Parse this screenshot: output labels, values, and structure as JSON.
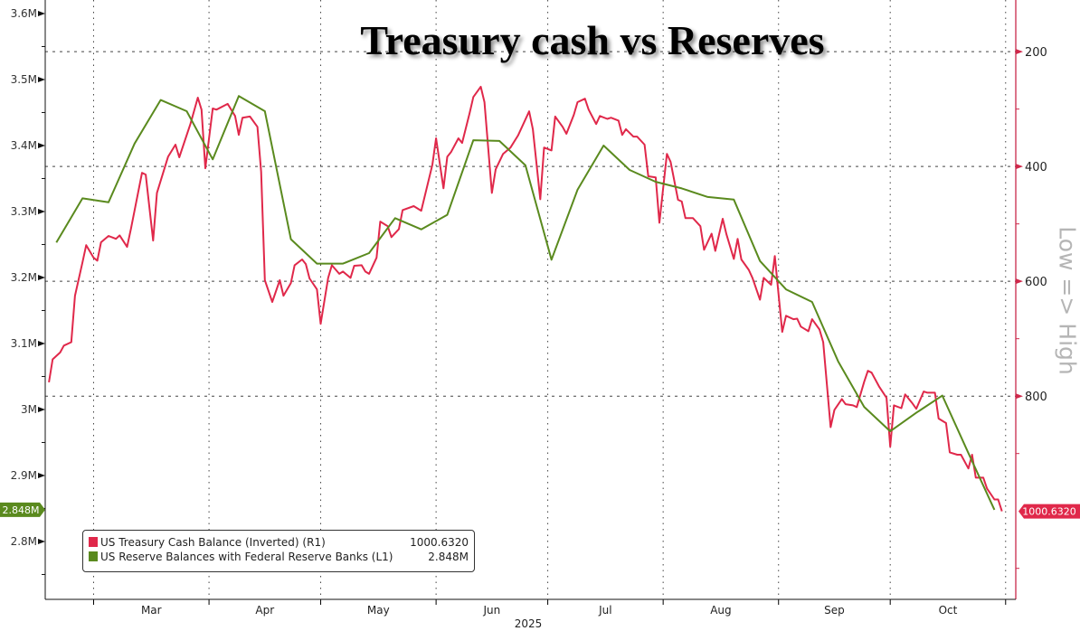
{
  "chart_data": {
    "type": "line",
    "title": "Treasury cash vs Reserves",
    "xlabel": "2025",
    "x_tick_labels": [
      "Mar",
      "Apr",
      "May",
      "Jun",
      "Jul",
      "Aug",
      "Sep",
      "Oct"
    ],
    "xlim": [
      "2025-02-16",
      "2025-11-03"
    ],
    "left_axis": {
      "ylim": [
        2.7123,
        3.6205
      ],
      "tick_labels": [
        "3.6M",
        "3.5M",
        "3.4M",
        "3.3M",
        "3.2M",
        "3.1M",
        "3M",
        "2.9M",
        "2.8M"
      ],
      "ticks": [
        3.6,
        3.5,
        3.4,
        3.3,
        3.2,
        3.1,
        3.0,
        2.9,
        2.8
      ],
      "last_value_label": "2.848M"
    },
    "right_axis": {
      "inverted": true,
      "ylim": [
        110,
        1154
      ],
      "tick_labels": [
        "200",
        "400",
        "600",
        "800"
      ],
      "ticks": [
        200,
        400,
        600,
        800
      ],
      "axis_label": "Low => High",
      "last_value_label": "1000.6320"
    },
    "grid": true,
    "legend_position": "bottom-left",
    "series": [
      {
        "name": "US Treasury Cash Balance (Inverted) (R1)",
        "axis": "right",
        "color": "#e0284a",
        "last": "1000.6320",
        "x": [
          "2025-02-17",
          "2025-02-18",
          "2025-02-20",
          "2025-02-21",
          "2025-02-23",
          "2025-02-24",
          "2025-02-26",
          "2025-02-27",
          "2025-03-01",
          "2025-03-02",
          "2025-03-03",
          "2025-03-05",
          "2025-03-07",
          "2025-03-08",
          "2025-03-10",
          "2025-03-11",
          "2025-03-14",
          "2025-03-15",
          "2025-03-17",
          "2025-03-18",
          "2025-03-21",
          "2025-03-23",
          "2025-03-24",
          "2025-03-27",
          "2025-03-29",
          "2025-03-30",
          "2025-03-31",
          "2025-04-02",
          "2025-04-03",
          "2025-04-06",
          "2025-04-08",
          "2025-04-09",
          "2025-04-10",
          "2025-04-12",
          "2025-04-14",
          "2025-04-15",
          "2025-04-16",
          "2025-04-18",
          "2025-04-20",
          "2025-04-21",
          "2025-04-23",
          "2025-04-24",
          "2025-04-26",
          "2025-04-27",
          "2025-04-28",
          "2025-04-30",
          "2025-05-01",
          "2025-05-03",
          "2025-05-04",
          "2025-05-06",
          "2025-05-07",
          "2025-05-09",
          "2025-05-10",
          "2025-05-12",
          "2025-05-13",
          "2025-05-14",
          "2025-05-16",
          "2025-05-17",
          "2025-05-19",
          "2025-05-20",
          "2025-05-22",
          "2025-05-23",
          "2025-05-26",
          "2025-05-28",
          "2025-05-31",
          "2025-06-01",
          "2025-06-03",
          "2025-06-04",
          "2025-06-05",
          "2025-06-07",
          "2025-06-08",
          "2025-06-10",
          "2025-06-11",
          "2025-06-13",
          "2025-06-14",
          "2025-06-16",
          "2025-06-17",
          "2025-06-19",
          "2025-06-21",
          "2025-06-23",
          "2025-06-26",
          "2025-06-27",
          "2025-06-29",
          "2025-06-30",
          "2025-07-02",
          "2025-07-03",
          "2025-07-05",
          "2025-07-06",
          "2025-07-08",
          "2025-07-09",
          "2025-07-11",
          "2025-07-12",
          "2025-07-14",
          "2025-07-15",
          "2025-07-17",
          "2025-07-18",
          "2025-07-20",
          "2025-07-21",
          "2025-07-22",
          "2025-07-24",
          "2025-07-25",
          "2025-07-27",
          "2025-07-28",
          "2025-07-30",
          "2025-07-31",
          "2025-08-02",
          "2025-08-03",
          "2025-08-05",
          "2025-08-06",
          "2025-08-07",
          "2025-08-09",
          "2025-08-11",
          "2025-08-12",
          "2025-08-14",
          "2025-08-15",
          "2025-08-17",
          "2025-08-18",
          "2025-08-20",
          "2025-08-21",
          "2025-08-22",
          "2025-08-24",
          "2025-08-25",
          "2025-08-27",
          "2025-08-28",
          "2025-08-30",
          "2025-08-31",
          "2025-09-02",
          "2025-09-03",
          "2025-09-05",
          "2025-09-06",
          "2025-09-07",
          "2025-09-09",
          "2025-09-10",
          "2025-09-12",
          "2025-09-13",
          "2025-09-15",
          "2025-09-16",
          "2025-09-18",
          "2025-09-19",
          "2025-09-21",
          "2025-09-22",
          "2025-09-24",
          "2025-09-25",
          "2025-09-26",
          "2025-09-28",
          "2025-09-30",
          "2025-10-01",
          "2025-10-02",
          "2025-10-04",
          "2025-10-05",
          "2025-10-07",
          "2025-10-08",
          "2025-10-10",
          "2025-10-11",
          "2025-10-13",
          "2025-10-14",
          "2025-10-16",
          "2025-10-17",
          "2025-10-19",
          "2025-10-20",
          "2025-10-22",
          "2025-10-23",
          "2025-10-24",
          "2025-10-26",
          "2025-10-27",
          "2025-10-29",
          "2025-10-30",
          "2025-10-31"
        ],
        "y": [
          776,
          736,
          724,
          712,
          706,
          625,
          567,
          537,
          559,
          564,
          532,
          521,
          526,
          520,
          540,
          509,
          411,
          414,
          529,
          446,
          383,
          362,
          384,
          326,
          280,
          301,
          403,
          299,
          301,
          291,
          312,
          345,
          315,
          313,
          331,
          409,
          598,
          636,
          598,
          625,
          603,
          572,
          562,
          570,
          595,
          614,
          674,
          594,
          572,
          587,
          583,
          594,
          573,
          572,
          583,
          587,
          559,
          496,
          504,
          523,
          509,
          476,
          469,
          477,
          397,
          351,
          438,
          383,
          375,
          351,
          359,
          307,
          279,
          261,
          288,
          446,
          405,
          378,
          367,
          346,
          304,
          335,
          457,
          367,
          372,
          313,
          331,
          343,
          310,
          288,
          282,
          301,
          326,
          312,
          317,
          315,
          320,
          345,
          335,
          348,
          348,
          362,
          417,
          419,
          498,
          378,
          392,
          458,
          461,
          490,
          490,
          504,
          545,
          517,
          547,
          491,
          518,
          561,
          526,
          562,
          580,
          594,
          632,
          594,
          606,
          556,
          688,
          660,
          666,
          665,
          679,
          687,
          666,
          684,
          706,
          854,
          824,
          805,
          814,
          816,
          819,
          775,
          756,
          759,
          783,
          803,
          888,
          816,
          821,
          797,
          813,
          822,
          792,
          794,
          794,
          839,
          847,
          898,
          902,
          902,
          926,
          902,
          942,
          942,
          961,
          980,
          980,
          1000.632
        ]
      },
      {
        "name": "US Reserve Balances with Federal Reserve Banks (L1)",
        "axis": "left",
        "color": "#5a8a1e",
        "last": "2.848M",
        "x": [
          "2025-02-19",
          "2025-02-26",
          "2025-03-05",
          "2025-03-12",
          "2025-03-19",
          "2025-03-26",
          "2025-04-02",
          "2025-04-09",
          "2025-04-16",
          "2025-04-23",
          "2025-04-30",
          "2025-05-07",
          "2025-05-14",
          "2025-05-21",
          "2025-05-28",
          "2025-06-04",
          "2025-06-11",
          "2025-06-18",
          "2025-06-25",
          "2025-07-02",
          "2025-07-09",
          "2025-07-16",
          "2025-07-23",
          "2025-07-30",
          "2025-08-06",
          "2025-08-13",
          "2025-08-20",
          "2025-08-27",
          "2025-09-03",
          "2025-09-10",
          "2025-09-17",
          "2025-09-24",
          "2025-10-01",
          "2025-10-08",
          "2025-10-15",
          "2025-10-22",
          "2025-10-29"
        ],
        "y": [
          3.253,
          3.32,
          3.314,
          3.403,
          3.469,
          3.452,
          3.379,
          3.475,
          3.452,
          3.258,
          3.221,
          3.221,
          3.237,
          3.29,
          3.273,
          3.295,
          3.408,
          3.407,
          3.37,
          3.227,
          3.333,
          3.4,
          3.363,
          3.345,
          3.335,
          3.322,
          3.318,
          3.225,
          3.182,
          3.163,
          3.073,
          3.004,
          2.967,
          2.995,
          3.021,
          2.934,
          2.848
        ]
      }
    ]
  }
}
